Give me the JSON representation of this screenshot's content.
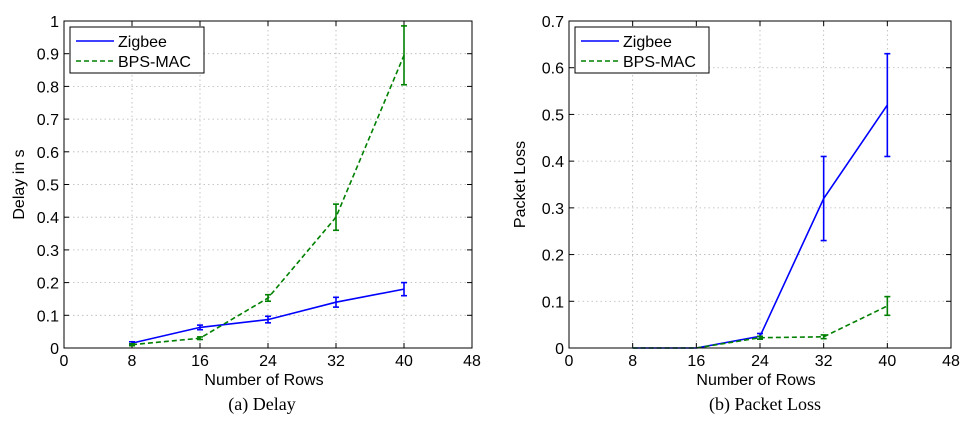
{
  "chart_data": [
    {
      "type": "line",
      "caption": "(a)  Delay",
      "xlabel": "Number of Rows",
      "ylabel": "Delay in s",
      "xlim": [
        0,
        48
      ],
      "ylim": [
        0,
        1
      ],
      "xticks": [
        0,
        8,
        16,
        24,
        32,
        40,
        48
      ],
      "yticks": [
        0,
        0.1,
        0.2,
        0.3,
        0.4,
        0.5,
        0.6,
        0.7,
        0.8,
        0.9,
        1
      ],
      "xtick_labels": [
        "0",
        "8",
        "16",
        "24",
        "32",
        "40",
        "48"
      ],
      "ytick_labels": [
        "0",
        "0.1",
        "0.2",
        "0.3",
        "0.4",
        "0.5",
        "0.6",
        "0.7",
        "0.8",
        "0.9",
        "1"
      ],
      "grid": true,
      "legend_position": "top-left",
      "series": [
        {
          "name": "Zigbee",
          "color": "#0000ff",
          "style": "solid",
          "x": [
            8,
            16,
            24,
            32,
            40
          ],
          "y": [
            0.015,
            0.063,
            0.087,
            0.14,
            0.18
          ],
          "error": [
            0.004,
            0.007,
            0.01,
            0.015,
            0.02
          ]
        },
        {
          "name": "BPS-MAC",
          "color": "#008000",
          "style": "dashed",
          "x": [
            8,
            16,
            24,
            32,
            40
          ],
          "y": [
            0.01,
            0.03,
            0.153,
            0.4,
            0.895
          ],
          "error": [
            0.003,
            0.004,
            0.01,
            0.04,
            0.09
          ]
        }
      ]
    },
    {
      "type": "line",
      "caption": "(b)  Packet Loss",
      "xlabel": "Number of Rows",
      "ylabel": "Packet Loss",
      "xlim": [
        0,
        48
      ],
      "ylim": [
        0,
        0.7
      ],
      "xticks": [
        0,
        8,
        16,
        24,
        32,
        40,
        48
      ],
      "yticks": [
        0,
        0.1,
        0.2,
        0.3,
        0.4,
        0.5,
        0.6,
        0.7
      ],
      "xtick_labels": [
        "0",
        "8",
        "16",
        "24",
        "32",
        "40",
        "48"
      ],
      "ytick_labels": [
        "0",
        "0.1",
        "0.2",
        "0.3",
        "0.4",
        "0.5",
        "0.6",
        "0.7"
      ],
      "grid": true,
      "legend_position": "top-left",
      "series": [
        {
          "name": "Zigbee",
          "color": "#0000ff",
          "style": "solid",
          "x": [
            8,
            16,
            24,
            32,
            40
          ],
          "y": [
            0,
            0,
            0.025,
            0.32,
            0.52
          ],
          "error": [
            0,
            0,
            0.006,
            0.09,
            0.11
          ]
        },
        {
          "name": "BPS-MAC",
          "color": "#008000",
          "style": "dashed",
          "x": [
            8,
            16,
            24,
            32,
            40
          ],
          "y": [
            0,
            0,
            0.022,
            0.024,
            0.09
          ],
          "error": [
            0,
            0,
            0.003,
            0.004,
            0.02
          ]
        }
      ]
    }
  ]
}
